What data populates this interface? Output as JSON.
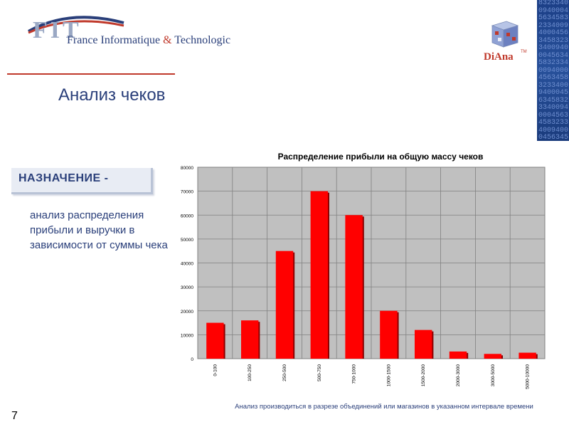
{
  "header": {
    "company_logo_letters": "FIT",
    "company_name_part1": "France Informatique ",
    "company_name_amp": "&",
    "company_name_part2": " Technologic",
    "product_name": "DiAna",
    "product_tm": "TM",
    "side_digits": "8323340094000456345832334009400045634583233400940004563458323340094000456345832334009400045634583233400940004563458323340094000456345832334009400045634583233400940004563458323340094000456345"
  },
  "page": {
    "title": "Анализ чеков",
    "purpose_label": "НАЗНАЧЕНИЕ -",
    "description": "анализ распределения прибыли и выручки в зависимости от суммы чека",
    "footnote": "Анализ производиться в разрезе объединений или магазинов в указанном интервале времени",
    "page_number": "7"
  },
  "colors": {
    "bar": "#ff0000",
    "bar_shadow": "#8a0000",
    "plot_bg": "#c0c0c0",
    "grid": "#808080",
    "title_blue": "#2a3f7a",
    "accent_red": "#c0392b"
  },
  "chart_data": {
    "type": "bar",
    "title": "Распределение прибыли на общую массу чеков",
    "categories": [
      "0-100",
      "100-250",
      "250-500",
      "500-750",
      "750-1000",
      "1000-1500",
      "1500-2000",
      "2000-3000",
      "3000-5000",
      "5000-10000"
    ],
    "values": [
      15000,
      16000,
      45000,
      70000,
      60000,
      20000,
      12000,
      3000,
      2000,
      2500
    ],
    "ylim": [
      0,
      80000
    ],
    "yticks": [
      0,
      10000,
      20000,
      30000,
      40000,
      50000,
      60000,
      70000,
      80000
    ],
    "ytick_labels": [
      "0",
      "10000",
      "20000",
      "30000",
      "40000",
      "50000",
      "60000",
      "70000",
      "80000"
    ],
    "xlabel": "",
    "ylabel": "",
    "grid": true,
    "legend": "none"
  }
}
